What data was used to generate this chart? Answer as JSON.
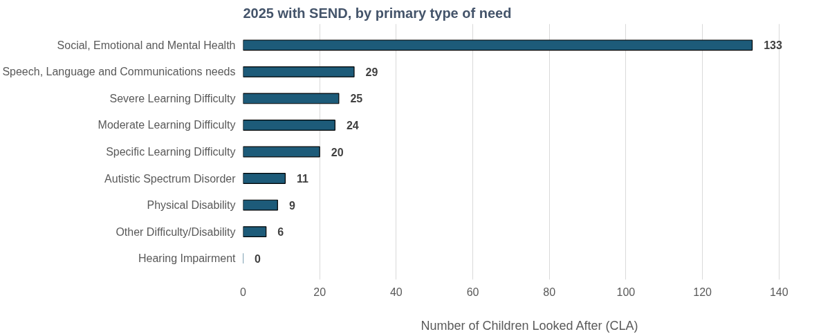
{
  "chart_data": {
    "type": "bar",
    "orientation": "horizontal",
    "title": "2025 with SEND, by primary type of need",
    "xlabel": "Number of Children Looked After (CLA)",
    "categories": [
      "Social, Emotional and Mental Health",
      "Speech, Language and Communications needs",
      "Severe Learning Difficulty",
      "Moderate Learning Difficulty",
      "Specific Learning Difficulty",
      "Autistic Spectrum Disorder",
      "Physical Disability",
      "Other Difficulty/Disability",
      "Hearing Impairment"
    ],
    "values": [
      133,
      29,
      25,
      24,
      20,
      11,
      9,
      6,
      0
    ],
    "color": "#1d5b79",
    "xlim": [
      0,
      140
    ],
    "xticks": [
      0,
      20,
      40,
      60,
      80,
      100,
      120,
      140
    ],
    "grid": "x",
    "data_labels": true
  }
}
